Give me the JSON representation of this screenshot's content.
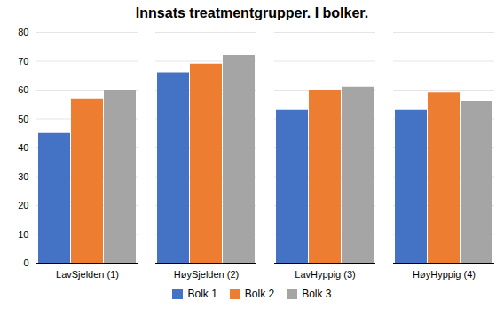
{
  "chart_data": {
    "type": "bar",
    "title": "Innsats treatmentgrupper. I bolker.",
    "categories": [
      "LavSjelden (1)",
      "HøySjelden (2)",
      "LavHyppig (3)",
      "HøyHyppig (4)"
    ],
    "series": [
      {
        "name": "Bolk 1",
        "color": "#4472C4",
        "values": [
          45,
          66,
          53,
          53
        ]
      },
      {
        "name": "Bolk 2",
        "color": "#ED7D31",
        "values": [
          57,
          69,
          60,
          59
        ]
      },
      {
        "name": "Bolk 3",
        "color": "#A5A5A5",
        "values": [
          60,
          72,
          61,
          56
        ]
      }
    ],
    "ylim": [
      0,
      80
    ],
    "yticks": [
      0,
      10,
      20,
      30,
      40,
      50,
      60,
      70,
      80
    ],
    "grid": true,
    "legend": "bottom"
  }
}
